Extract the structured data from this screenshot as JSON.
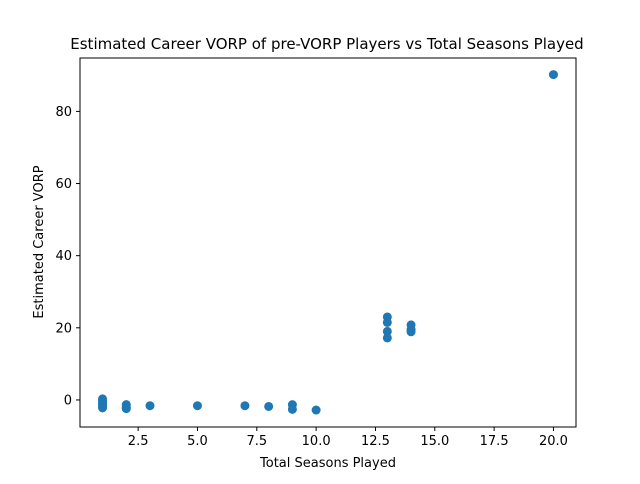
{
  "chart_data": {
    "type": "scatter",
    "title": "Estimated Career VORP of pre-VORP Players vs Total Seasons Played",
    "xlabel": "Total Seasons Played",
    "ylabel": "Estimated Career VORP",
    "xlim": [
      0.05,
      20.95
    ],
    "ylim": [
      -7.5,
      94.8
    ],
    "x_ticks": [
      2.5,
      5.0,
      7.5,
      10.0,
      12.5,
      15.0,
      17.5,
      20.0
    ],
    "x_tick_labels": [
      "2.5",
      "5.0",
      "7.5",
      "10.0",
      "12.5",
      "15.0",
      "17.5",
      "20.0"
    ],
    "y_ticks": [
      0,
      20,
      40,
      60,
      80
    ],
    "y_tick_labels": [
      "0",
      "20",
      "40",
      "60",
      "80"
    ],
    "grid": false,
    "legend": "none",
    "marker_color": "#1f77b4",
    "points": [
      {
        "x": 1,
        "y": 0.3
      },
      {
        "x": 1,
        "y": -0.3
      },
      {
        "x": 1,
        "y": -0.8
      },
      {
        "x": 1,
        "y": -1.3
      },
      {
        "x": 1,
        "y": -1.8
      },
      {
        "x": 1,
        "y": -2.2
      },
      {
        "x": 2,
        "y": -1.3
      },
      {
        "x": 2,
        "y": -2.0
      },
      {
        "x": 2,
        "y": -2.4
      },
      {
        "x": 3,
        "y": -1.6
      },
      {
        "x": 5,
        "y": -1.6
      },
      {
        "x": 7,
        "y": -1.6
      },
      {
        "x": 8,
        "y": -1.8
      },
      {
        "x": 9,
        "y": -1.3
      },
      {
        "x": 9,
        "y": -2.6
      },
      {
        "x": 10,
        "y": -2.8
      },
      {
        "x": 13,
        "y": 23.0
      },
      {
        "x": 13,
        "y": 21.5
      },
      {
        "x": 13,
        "y": 19.0
      },
      {
        "x": 13,
        "y": 17.2
      },
      {
        "x": 14,
        "y": 20.8
      },
      {
        "x": 14,
        "y": 19.5
      },
      {
        "x": 14,
        "y": 18.9
      },
      {
        "x": 20,
        "y": 90.2
      }
    ]
  }
}
